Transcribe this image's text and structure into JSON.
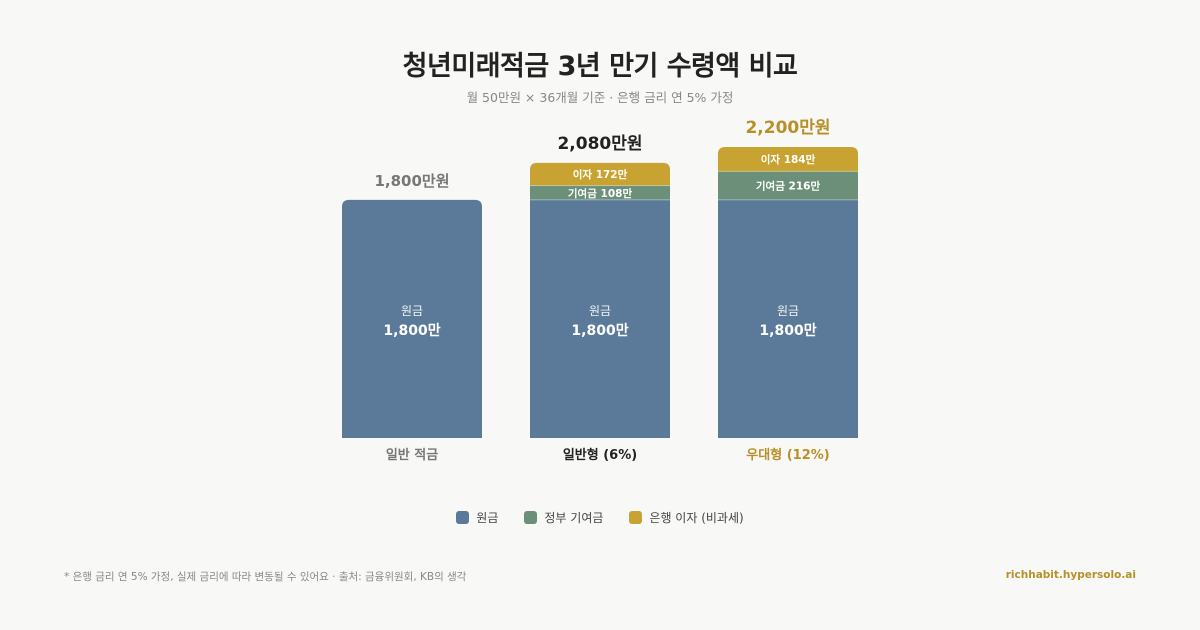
{
  "header": {
    "title": "청년미래적금 3년 만기 수령액 비교",
    "subtitle": "월 50만원 × 36개월 기준 · 은행 금리 연 5% 가정"
  },
  "colors": {
    "principal": "#5b7a99",
    "government": "#6b8f78",
    "interest": "#c9a331",
    "text_dark": "#222222",
    "text_gray": "#888888",
    "highlight": "#b8902a"
  },
  "chart_data": {
    "type": "bar",
    "stacked": true,
    "unit": "만원",
    "categories": [
      "일반 적금",
      "일반형 (6%)",
      "우대형 (12%)"
    ],
    "series": [
      {
        "name": "원금",
        "values": [
          1800,
          1800,
          1800
        ]
      },
      {
        "name": "정부 기여금",
        "values": [
          0,
          108,
          216
        ]
      },
      {
        "name": "은행 이자 (비과세)",
        "values": [
          0,
          172,
          184
        ]
      }
    ],
    "totals": [
      1800,
      2080,
      2200
    ],
    "total_labels": [
      "1,800만원",
      "2,080만원",
      "2,200만원"
    ],
    "segment_labels": {
      "principal": [
        "원금",
        "1,800만"
      ],
      "government": [
        "",
        "기여금 108만",
        "기여금 216만"
      ],
      "interest": [
        "",
        "이자 172만",
        "이자 184만"
      ]
    },
    "ylim": [
      0,
      2200
    ],
    "grid": false,
    "legend_position": "bottom-center"
  },
  "legend": {
    "items": [
      "원금",
      "정부 기여금",
      "은행 이자 (비과세)"
    ]
  },
  "footer": {
    "note": "* 은행 금리 연 5% 가정, 실제 금리에 따라 변동될 수 있어요 · 출처: 금융위원회, KB의 생각",
    "site": "richhabit.hypersolo.ai"
  }
}
